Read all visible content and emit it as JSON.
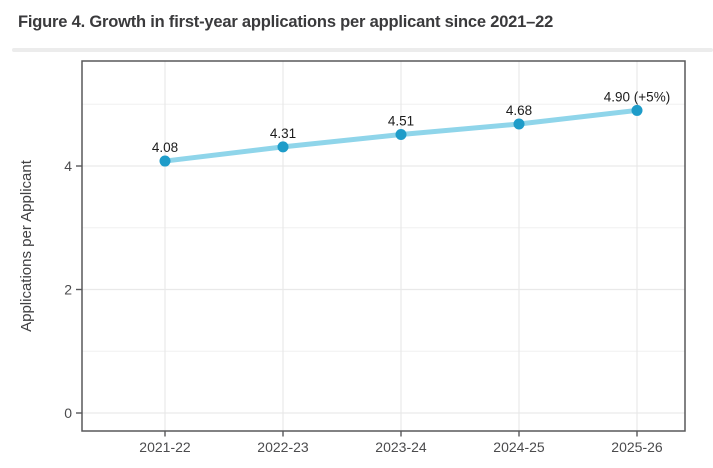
{
  "figure": {
    "title": "Figure 4. Growth in first-year applications per applicant since 2021–22"
  },
  "chart_data": {
    "type": "line",
    "title": "Figure 4. Growth in first-year applications per applicant since 2021–22",
    "categories": [
      "2021-22",
      "2022-23",
      "2023-24",
      "2024-25",
      "2025-26"
    ],
    "series": [
      {
        "name": "Applications per Applicant",
        "values": [
          4.08,
          4.31,
          4.51,
          4.68,
          4.9
        ],
        "point_labels": [
          "4.08",
          "4.31",
          "4.51",
          "4.68",
          "4.90 (+5%)"
        ]
      }
    ],
    "xlabel": "",
    "ylabel": "Applications per Applicant",
    "ylim": [
      0,
      5.7
    ],
    "yticks": [
      0,
      2,
      4
    ],
    "yticks_minor": [
      1,
      3,
      5
    ],
    "ytick_labels": [
      "0",
      "2",
      "4"
    ],
    "grid": true,
    "legend": false,
    "line_color": "#8FD5EA",
    "point_color": "#1E9CC9"
  }
}
